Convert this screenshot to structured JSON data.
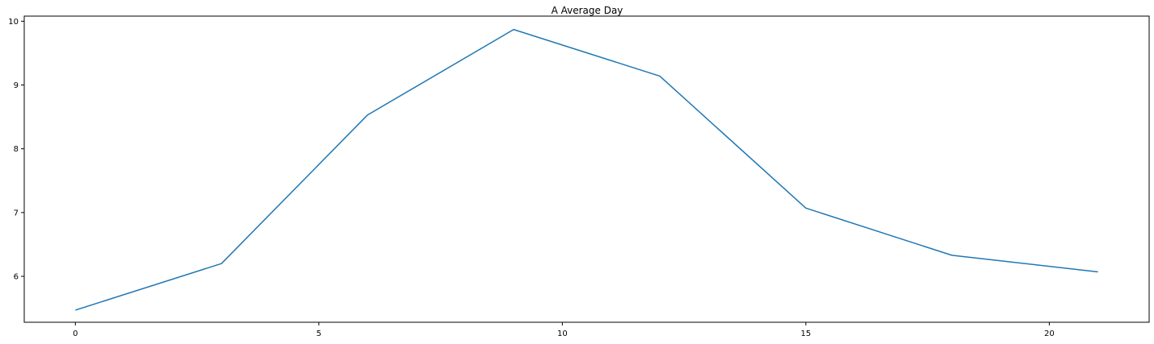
{
  "chart_data": {
    "type": "line",
    "title": "A Average Day",
    "xlabel": "",
    "ylabel": "",
    "xlim": [
      -1.05,
      22.05
    ],
    "ylim": [
      5.28,
      10.08
    ],
    "xticks": [
      0,
      5,
      10,
      15,
      20
    ],
    "yticks": [
      6,
      7,
      8,
      9,
      10
    ],
    "grid": false,
    "series": [
      {
        "color": "#1f77b4",
        "x": [
          0,
          3,
          6,
          9,
          12,
          15,
          18,
          21
        ],
        "y": [
          5.47,
          6.2,
          8.53,
          9.87,
          9.14,
          7.07,
          6.33,
          6.07
        ]
      }
    ]
  }
}
